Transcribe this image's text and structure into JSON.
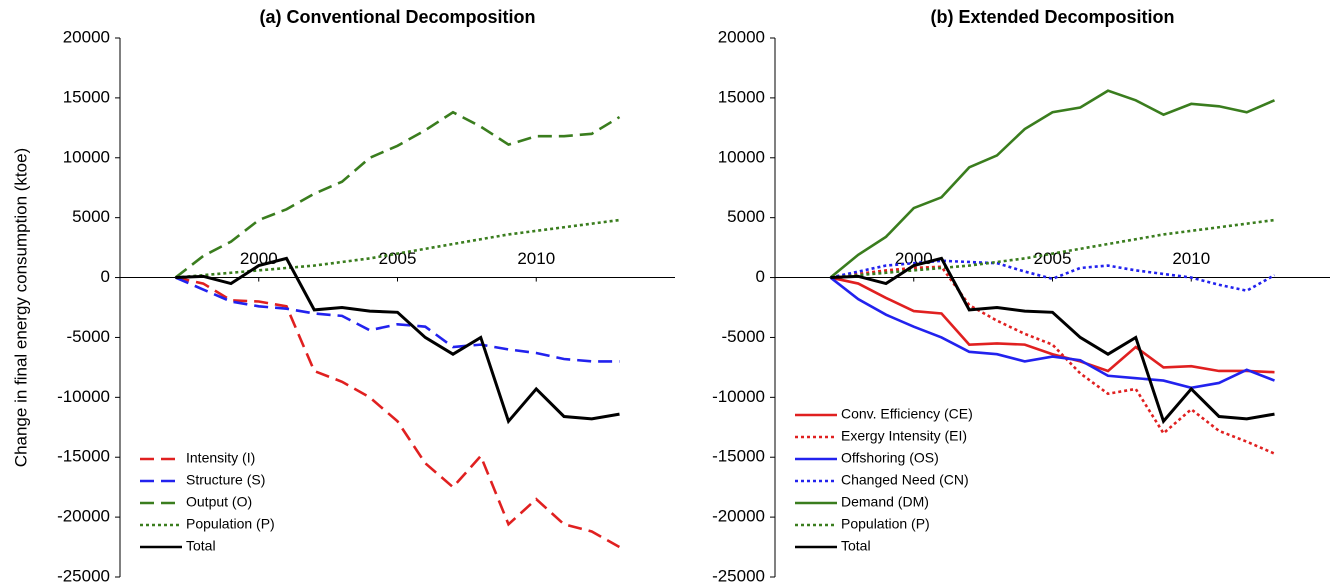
{
  "chart_data": [
    {
      "type": "line",
      "title": "(a) Conventional Decomposition",
      "ylabel": "Change in final energy consumption (ktoe)",
      "x": [
        1997,
        1998,
        1999,
        2000,
        2001,
        2002,
        2003,
        2004,
        2005,
        2006,
        2007,
        2008,
        2009,
        2010,
        2011,
        2012,
        2013
      ],
      "xlim": [
        1995,
        2015
      ],
      "xticks": [
        2000,
        2005,
        2010
      ],
      "ylim": [
        -25000,
        20000
      ],
      "yticks": [
        20000,
        15000,
        10000,
        5000,
        0,
        -5000,
        -10000,
        -15000,
        -20000,
        -25000
      ],
      "legend": "lower left",
      "series": [
        {
          "name": "Intensity (I)",
          "color": "#e02020",
          "style": "dashed",
          "values": [
            0,
            -500,
            -1900,
            -2000,
            -2400,
            -7800,
            -8700,
            -10000,
            -12000,
            -15500,
            -17500,
            -14900,
            -20600,
            -18500,
            -20600,
            -21200,
            -22500
          ]
        },
        {
          "name": "Structure (S)",
          "color": "#2222ee",
          "style": "dashed",
          "values": [
            0,
            -1000,
            -2000,
            -2400,
            -2600,
            -3000,
            -3200,
            -4400,
            -3900,
            -4100,
            -5800,
            -5600,
            -6000,
            -6300,
            -6800,
            -7000,
            -7000
          ]
        },
        {
          "name": "Output (O)",
          "color": "#3a7d1e",
          "style": "dashed",
          "values": [
            0,
            1800,
            3000,
            4800,
            5700,
            7000,
            8000,
            10000,
            11000,
            12300,
            13800,
            12600,
            11100,
            11800,
            11800,
            12000,
            13400
          ]
        },
        {
          "name": "Population (P)",
          "color": "#3a7d1e",
          "style": "dotted",
          "values": [
            0,
            200,
            400,
            600,
            800,
            1000,
            1300,
            1600,
            2000,
            2400,
            2800,
            3200,
            3600,
            3900,
            4200,
            4500,
            4800
          ]
        },
        {
          "name": "Total",
          "color": "#000000",
          "style": "solid",
          "values": [
            0,
            100,
            -500,
            1000,
            1600,
            -2700,
            -2500,
            -2800,
            -2900,
            -5000,
            -6400,
            -5000,
            -12000,
            -9300,
            -11600,
            -11800,
            -11400
          ]
        }
      ]
    },
    {
      "type": "line",
      "title": "(b) Extended Decomposition",
      "x": [
        1997,
        1998,
        1999,
        2000,
        2001,
        2002,
        2003,
        2004,
        2005,
        2006,
        2007,
        2008,
        2009,
        2010,
        2011,
        2012,
        2013
      ],
      "xlim": [
        1995,
        2015
      ],
      "xticks": [
        2000,
        2005,
        2010
      ],
      "ylim": [
        -25000,
        20000
      ],
      "yticks": [
        20000,
        15000,
        10000,
        5000,
        0,
        -5000,
        -10000,
        -15000,
        -20000,
        -25000
      ],
      "legend": "lower left",
      "series": [
        {
          "name": "Conv. Efficiency (CE)",
          "color": "#e02020",
          "style": "solid",
          "values": [
            0,
            -500,
            -1700,
            -2800,
            -3000,
            -5600,
            -5500,
            -5600,
            -6400,
            -7000,
            -7800,
            -5800,
            -7500,
            -7400,
            -7800,
            -7800,
            -7900
          ]
        },
        {
          "name": "Exergy Intensity (EI)",
          "color": "#e02020",
          "style": "dotted",
          "values": [
            0,
            300,
            600,
            800,
            900,
            -2300,
            -3600,
            -4700,
            -5600,
            -8000,
            -9700,
            -9300,
            -13000,
            -11000,
            -12800,
            -13700,
            -14700
          ]
        },
        {
          "name": "Offshoring (OS)",
          "color": "#2222ee",
          "style": "solid",
          "values": [
            0,
            -1800,
            -3100,
            -4100,
            -5000,
            -6200,
            -6400,
            -7000,
            -6600,
            -6900,
            -8200,
            -8400,
            -8600,
            -9200,
            -8800,
            -7700,
            -8600
          ]
        },
        {
          "name": "Changed Need (CN)",
          "color": "#2222ee",
          "style": "dotted",
          "values": [
            0,
            500,
            1000,
            1200,
            1400,
            1300,
            1200,
            500,
            -100,
            800,
            1000,
            600,
            300,
            0,
            -600,
            -1100,
            200
          ]
        },
        {
          "name": "Demand (DM)",
          "color": "#3a7d1e",
          "style": "solid",
          "values": [
            0,
            1900,
            3400,
            5800,
            6700,
            9200,
            10200,
            12400,
            13800,
            14200,
            15600,
            14800,
            13600,
            14500,
            14300,
            13800,
            14800
          ]
        },
        {
          "name": "Population (P)",
          "color": "#3a7d1e",
          "style": "dotted",
          "values": [
            0,
            200,
            400,
            600,
            800,
            1000,
            1300,
            1600,
            2000,
            2400,
            2800,
            3200,
            3600,
            3900,
            4200,
            4500,
            4800
          ]
        },
        {
          "name": "Total",
          "color": "#000000",
          "style": "solid",
          "values": [
            0,
            100,
            -500,
            1000,
            1600,
            -2700,
            -2500,
            -2800,
            -2900,
            -5000,
            -6400,
            -5000,
            -12000,
            -9300,
            -11600,
            -11800,
            -11400
          ]
        }
      ]
    }
  ]
}
